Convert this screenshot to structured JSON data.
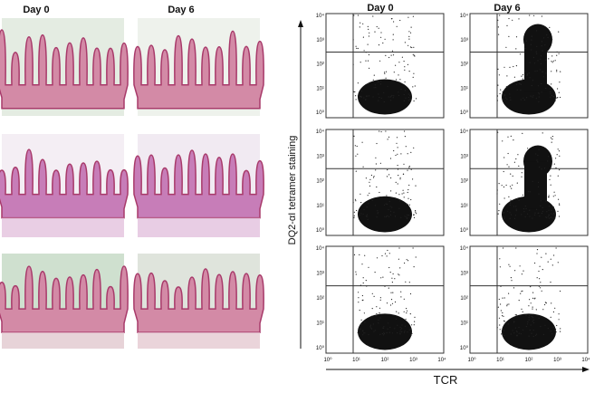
{
  "histology": {
    "columns": [
      "Day 0",
      "Day 6"
    ]
  },
  "flow_cytometry": {
    "columns": [
      "Day 0",
      "Day 6"
    ],
    "y_axis_label": "DQ2-αI tetramer staining",
    "x_axis_label": "TCR",
    "axis_ticks": [
      "10⁰",
      "10¹",
      "10²",
      "10³",
      "10⁴"
    ]
  }
}
